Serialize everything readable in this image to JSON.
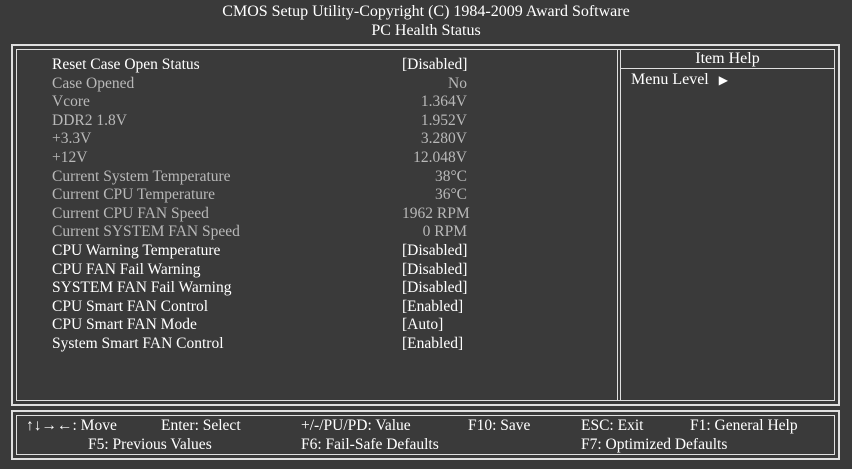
{
  "header": {
    "line1": "CMOS Setup Utility-Copyright (C) 1984-2009 Award Software",
    "line2": "PC Health Status"
  },
  "items": [
    {
      "label": "Reset Case Open Status",
      "value": "[Disabled]",
      "enabled": true
    },
    {
      "label": "Case Opened",
      "value": "No",
      "enabled": false
    },
    {
      "label": "Vcore",
      "value": "1.364V",
      "enabled": false
    },
    {
      "label": "DDR2 1.8V",
      "value": "1.952V",
      "enabled": false
    },
    {
      "label": "+3.3V",
      "value": "3.280V",
      "enabled": false
    },
    {
      "label": "+12V",
      "value": "12.048V",
      "enabled": false
    },
    {
      "label": "Current System Temperature",
      "value": "38°C",
      "enabled": false
    },
    {
      "label": "Current CPU Temperature",
      "value": "36°C",
      "enabled": false
    },
    {
      "label": "Current CPU FAN Speed",
      "value": "1962 RPM",
      "enabled": false
    },
    {
      "label": "Current SYSTEM FAN Speed",
      "value": "0 RPM",
      "enabled": false
    },
    {
      "label": "CPU Warning Temperature",
      "value": "[Disabled]",
      "enabled": true
    },
    {
      "label": "CPU FAN Fail Warning",
      "value": "[Disabled]",
      "enabled": true
    },
    {
      "label": "SYSTEM FAN Fail Warning",
      "value": "[Disabled]",
      "enabled": true
    },
    {
      "label": "CPU Smart FAN Control",
      "value": "[Enabled]",
      "enabled": true
    },
    {
      "label": "CPU Smart FAN Mode",
      "value": "[Auto]",
      "enabled": true
    },
    {
      "label": "System Smart FAN Control",
      "value": "[Enabled]",
      "enabled": true
    }
  ],
  "help": {
    "title": "Item Help",
    "menu_level": "Menu Level"
  },
  "footer": {
    "move": "↑↓→←: Move",
    "enter": "Enter: Select",
    "value": "+/-/PU/PD: Value",
    "save": "F10: Save",
    "exit": "ESC: Exit",
    "general_help": "F1: General Help",
    "previous": "F5: Previous Values",
    "failsafe": "F6: Fail-Safe Defaults",
    "optimized": "F7: Optimized Defaults"
  }
}
